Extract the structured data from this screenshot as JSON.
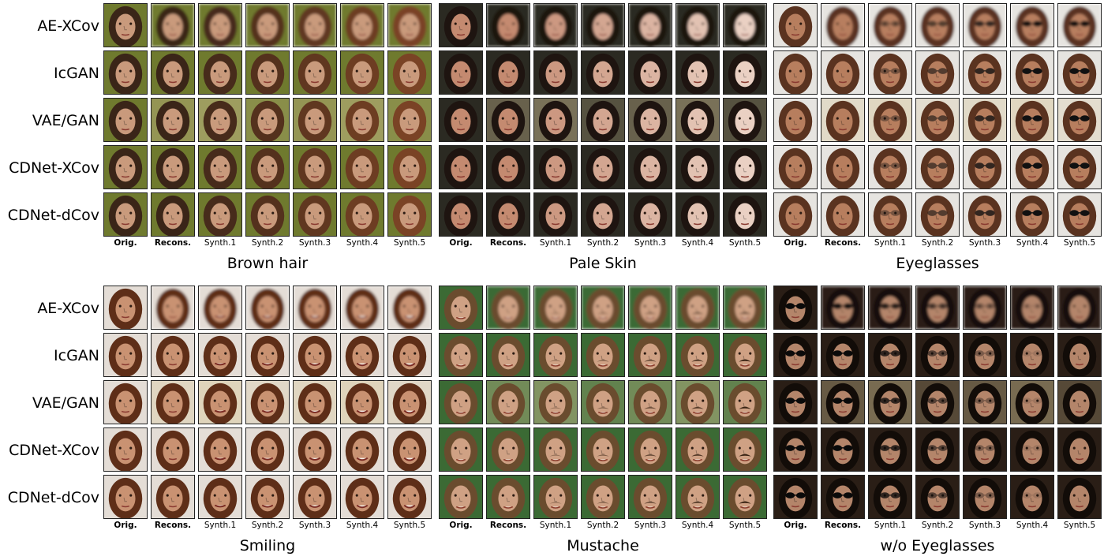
{
  "methods": [
    "AE-XCov",
    "IcGAN",
    "VAE/GAN",
    "CDNet-XCov",
    "CDNet-dCov"
  ],
  "columns": [
    "Orig.",
    "Recons.",
    "Synth.1",
    "Synth.2",
    "Synth.3",
    "Synth.4",
    "Synth.5"
  ],
  "panels": [
    {
      "title": "Brown hair",
      "style": {
        "bg": "#6f7a2e",
        "hair": "#3a2518",
        "skin": "#c99a7c",
        "hairShift": "#8a4a28"
      }
    },
    {
      "title": "Pale Skin",
      "style": {
        "bg": "#2b2a22",
        "hair": "#1e1410",
        "skin": "#c48a70",
        "skinShift": "#eed8cc"
      }
    },
    {
      "title": "Eyeglasses",
      "style": {
        "bg": "#e6e4e0",
        "hair": "#5a3320",
        "skin": "#b77e5e",
        "accessory": "glasses"
      }
    },
    {
      "title": "Smiling",
      "style": {
        "bg": "#e4ddd6",
        "hair": "#5e2e18",
        "skin": "#c99272",
        "expression": "smile"
      }
    },
    {
      "title": "Mustache",
      "style": {
        "bg": "#3b6a34",
        "hair": "#6a4c2e",
        "skin": "#cfa184",
        "accessory": "mustache"
      }
    },
    {
      "title": "w/o Eyeglasses",
      "style": {
        "bg": "#2a1e16",
        "hair": "#120c08",
        "skin": "#b4856a",
        "accessory": "remove-glasses"
      }
    }
  ]
}
